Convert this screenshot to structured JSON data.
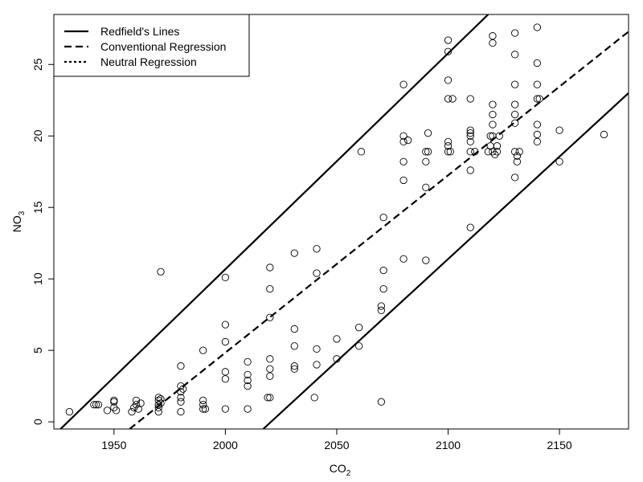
{
  "chart_data": {
    "type": "scatter",
    "xlabel_main": "CO",
    "xlabel_sub": "2",
    "ylabel_main": "NO",
    "ylabel_sub": "3",
    "xlim": [
      1923,
      2181
    ],
    "ylim": [
      -0.5,
      28.5
    ],
    "xticks": [
      1950,
      2000,
      2050,
      2100,
      2150
    ],
    "yticks": [
      0,
      5,
      10,
      15,
      20,
      25
    ],
    "legend": {
      "position": "top-left",
      "entries": [
        {
          "label": "Redfield's Lines",
          "style": "solid"
        },
        {
          "label": "Conventional Regression",
          "style": "dashed"
        },
        {
          "label": "Neutral Regression",
          "style": "dotted"
        }
      ]
    },
    "lines": [
      {
        "name": "Redfield's Lines",
        "style": "solid",
        "points": [
          [
            1926,
            -0.5
          ],
          [
            2118,
            28.5
          ]
        ]
      },
      {
        "name": "Redfield's Lines",
        "style": "solid",
        "points": [
          [
            2017,
            -0.5
          ],
          [
            2181,
            23.0
          ]
        ]
      },
      {
        "name": "Conventional Regression",
        "style": "dashed",
        "points": [
          [
            1957,
            -0.5
          ],
          [
            2181,
            27.3
          ]
        ]
      }
    ],
    "points": [
      [
        1930,
        0.7
      ],
      [
        1941,
        1.2
      ],
      [
        1942,
        1.2
      ],
      [
        1943,
        1.2
      ],
      [
        1947,
        0.8
      ],
      [
        1950,
        1.4
      ],
      [
        1950,
        1.5
      ],
      [
        1950,
        1.0
      ],
      [
        1951,
        0.8
      ],
      [
        1958,
        0.7
      ],
      [
        1959,
        1.0
      ],
      [
        1960,
        1.2
      ],
      [
        1960,
        1.5
      ],
      [
        1961,
        0.9
      ],
      [
        1962,
        1.3
      ],
      [
        1970,
        1.0
      ],
      [
        1970,
        1.2
      ],
      [
        1970,
        1.5
      ],
      [
        1970,
        1.7
      ],
      [
        1970,
        0.7
      ],
      [
        1971,
        1.3
      ],
      [
        1971,
        1.6
      ],
      [
        1971,
        10.5
      ],
      [
        1980,
        0.7
      ],
      [
        1980,
        1.4
      ],
      [
        1980,
        1.7
      ],
      [
        1980,
        2.1
      ],
      [
        1980,
        2.5
      ],
      [
        1980,
        3.9
      ],
      [
        1981,
        2.3
      ],
      [
        1990,
        0.9
      ],
      [
        1990,
        1.2
      ],
      [
        1990,
        1.5
      ],
      [
        1990,
        5.0
      ],
      [
        1991,
        0.9
      ],
      [
        2000,
        0.9
      ],
      [
        2000,
        3.0
      ],
      [
        2000,
        3.5
      ],
      [
        2000,
        5.6
      ],
      [
        2000,
        6.8
      ],
      [
        2000,
        10.1
      ],
      [
        2010,
        0.9
      ],
      [
        2010,
        2.5
      ],
      [
        2010,
        2.9
      ],
      [
        2010,
        3.3
      ],
      [
        2010,
        4.2
      ],
      [
        2019,
        1.7
      ],
      [
        2020,
        1.7
      ],
      [
        2020,
        3.2
      ],
      [
        2020,
        3.7
      ],
      [
        2020,
        4.4
      ],
      [
        2020,
        7.3
      ],
      [
        2020,
        9.3
      ],
      [
        2020,
        10.8
      ],
      [
        2031,
        3.7
      ],
      [
        2031,
        3.9
      ],
      [
        2031,
        5.3
      ],
      [
        2031,
        6.5
      ],
      [
        2031,
        11.8
      ],
      [
        2040,
        1.7
      ],
      [
        2041,
        4.0
      ],
      [
        2041,
        5.1
      ],
      [
        2041,
        10.4
      ],
      [
        2041,
        12.1
      ],
      [
        2050,
        4.4
      ],
      [
        2050,
        5.8
      ],
      [
        2060,
        5.3
      ],
      [
        2060,
        6.6
      ],
      [
        2061,
        18.9
      ],
      [
        2070,
        1.4
      ],
      [
        2070,
        7.8
      ],
      [
        2070,
        8.1
      ],
      [
        2071,
        9.3
      ],
      [
        2071,
        10.6
      ],
      [
        2071,
        14.3
      ],
      [
        2080,
        11.4
      ],
      [
        2080,
        16.9
      ],
      [
        2080,
        18.2
      ],
      [
        2080,
        19.6
      ],
      [
        2080,
        20.0
      ],
      [
        2080,
        23.6
      ],
      [
        2082,
        19.7
      ],
      [
        2090,
        11.3
      ],
      [
        2090,
        16.4
      ],
      [
        2090,
        18.2
      ],
      [
        2090,
        18.9
      ],
      [
        2091,
        18.9
      ],
      [
        2091,
        20.2
      ],
      [
        2100,
        18.9
      ],
      [
        2100,
        19.3
      ],
      [
        2100,
        19.6
      ],
      [
        2100,
        22.6
      ],
      [
        2100,
        23.9
      ],
      [
        2100,
        25.9
      ],
      [
        2100,
        26.7
      ],
      [
        2101,
        18.9
      ],
      [
        2102,
        22.6
      ],
      [
        2110,
        13.6
      ],
      [
        2110,
        17.6
      ],
      [
        2110,
        18.9
      ],
      [
        2110,
        19.6
      ],
      [
        2110,
        20.0
      ],
      [
        2110,
        20.2
      ],
      [
        2110,
        20.4
      ],
      [
        2110,
        22.6
      ],
      [
        2112,
        18.9
      ],
      [
        2118,
        18.9
      ],
      [
        2119,
        19.3
      ],
      [
        2119,
        20.0
      ],
      [
        2120,
        18.9
      ],
      [
        2120,
        20.0
      ],
      [
        2120,
        20.8
      ],
      [
        2120,
        21.5
      ],
      [
        2120,
        22.2
      ],
      [
        2120,
        26.5
      ],
      [
        2120,
        27.0
      ],
      [
        2121,
        18.7
      ],
      [
        2122,
        18.9
      ],
      [
        2122,
        19.3
      ],
      [
        2123,
        20.0
      ],
      [
        2130,
        17.1
      ],
      [
        2130,
        18.9
      ],
      [
        2130,
        20.9
      ],
      [
        2130,
        21.5
      ],
      [
        2130,
        22.2
      ],
      [
        2130,
        23.6
      ],
      [
        2130,
        25.7
      ],
      [
        2130,
        27.2
      ],
      [
        2131,
        18.2
      ],
      [
        2131,
        18.6
      ],
      [
        2132,
        18.9
      ],
      [
        2140,
        19.6
      ],
      [
        2140,
        20.1
      ],
      [
        2140,
        20.8
      ],
      [
        2140,
        22.6
      ],
      [
        2140,
        23.6
      ],
      [
        2140,
        25.1
      ],
      [
        2140,
        27.6
      ],
      [
        2141,
        22.6
      ],
      [
        2150,
        18.2
      ],
      [
        2150,
        20.4
      ],
      [
        2170,
        20.1
      ]
    ]
  }
}
